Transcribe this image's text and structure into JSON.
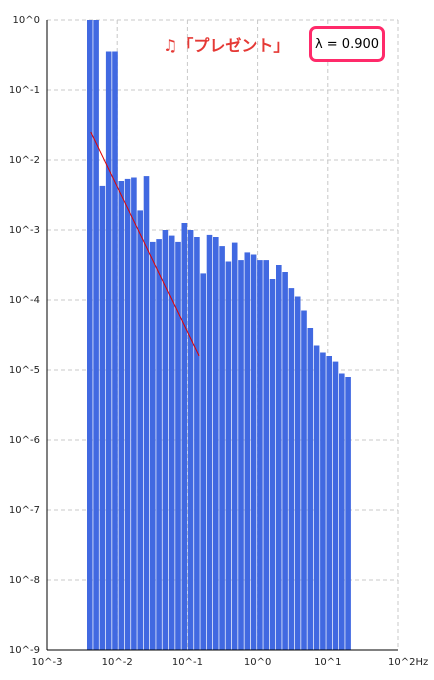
{
  "song_title": "♫「プレゼント」",
  "lambda_label": "λ = 0.900",
  "chart_data": {
    "type": "bar",
    "x_scale": "log",
    "y_scale": "log",
    "x_unit": "Hz",
    "xlim": [
      "10^-3",
      "10^2"
    ],
    "ylim": [
      "10^-9",
      "10^0"
    ],
    "grid": true,
    "x_tick_labels": [
      "10^-3",
      "10^-2",
      "10^-1",
      "10^0",
      "10^1",
      "10^2Hz"
    ],
    "y_tick_labels": [
      "10^0",
      "10^-1",
      "10^-2",
      "10^-3",
      "10^-4",
      "10^-5",
      "10^-6",
      "10^-7",
      "10^-8",
      "10^-9"
    ],
    "bar_color": "#4169e1",
    "fit_color": "#e00000",
    "series": [
      {
        "values_log10": [
          0.0,
          0.0,
          -2.37,
          -0.45,
          -0.45,
          -2.3,
          -2.27,
          -2.25,
          -2.72,
          -2.23,
          -3.17,
          -3.13,
          -3.0,
          -3.08,
          -3.17,
          -2.9,
          -3.0,
          -3.1,
          -3.62,
          -3.07,
          -3.1,
          -3.23,
          -3.45,
          -3.18,
          -3.43,
          -3.32,
          -3.35,
          -3.43,
          -3.43,
          -3.7,
          -3.5,
          -3.6,
          -3.83,
          -3.95,
          -4.15,
          -4.4,
          -4.65,
          -4.75,
          -4.8,
          -4.88,
          -5.05,
          -5.1
        ]
      },
      {
        "type": "line",
        "x": [
          0.0042,
          0.147
        ],
        "y_log10": [
          -1.6,
          -4.8
        ]
      }
    ]
  }
}
